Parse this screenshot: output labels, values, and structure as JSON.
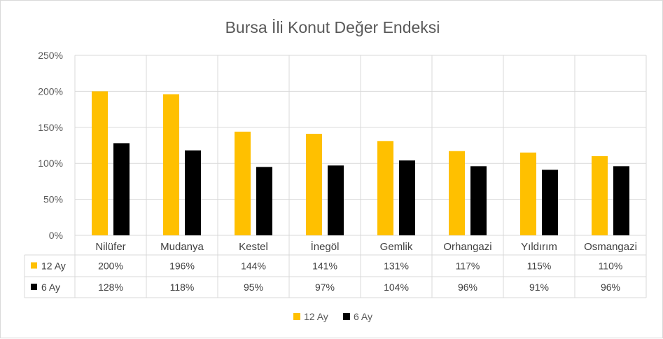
{
  "chart_data": {
    "type": "bar",
    "title": "Bursa İli Konut Değer Endeksi",
    "categories": [
      "Nilüfer",
      "Mudanya",
      "Kestel",
      "İnegöl",
      "Gemlik",
      "Orhangazi",
      "Yıldırım",
      "Osmangazi"
    ],
    "series": [
      {
        "name": "12 Ay",
        "color": "#FFC000",
        "values": [
          200,
          196,
          144,
          141,
          131,
          117,
          115,
          110
        ],
        "labels": [
          "200%",
          "196%",
          "144%",
          "141%",
          "131%",
          "117%",
          "115%",
          "110%"
        ]
      },
      {
        "name": "6 Ay",
        "color": "#000000",
        "values": [
          128,
          118,
          95,
          97,
          104,
          96,
          91,
          96
        ],
        "labels": [
          "128%",
          "118%",
          "95%",
          "97%",
          "104%",
          "96%",
          "91%",
          "96%"
        ]
      }
    ],
    "ylim": [
      0,
      250
    ],
    "yticks": [
      0,
      50,
      100,
      150,
      200,
      250
    ],
    "ytick_labels": [
      "0%",
      "50%",
      "100%",
      "150%",
      "200%",
      "250%"
    ],
    "grid": true,
    "legend": "bottom",
    "data_table": true
  }
}
